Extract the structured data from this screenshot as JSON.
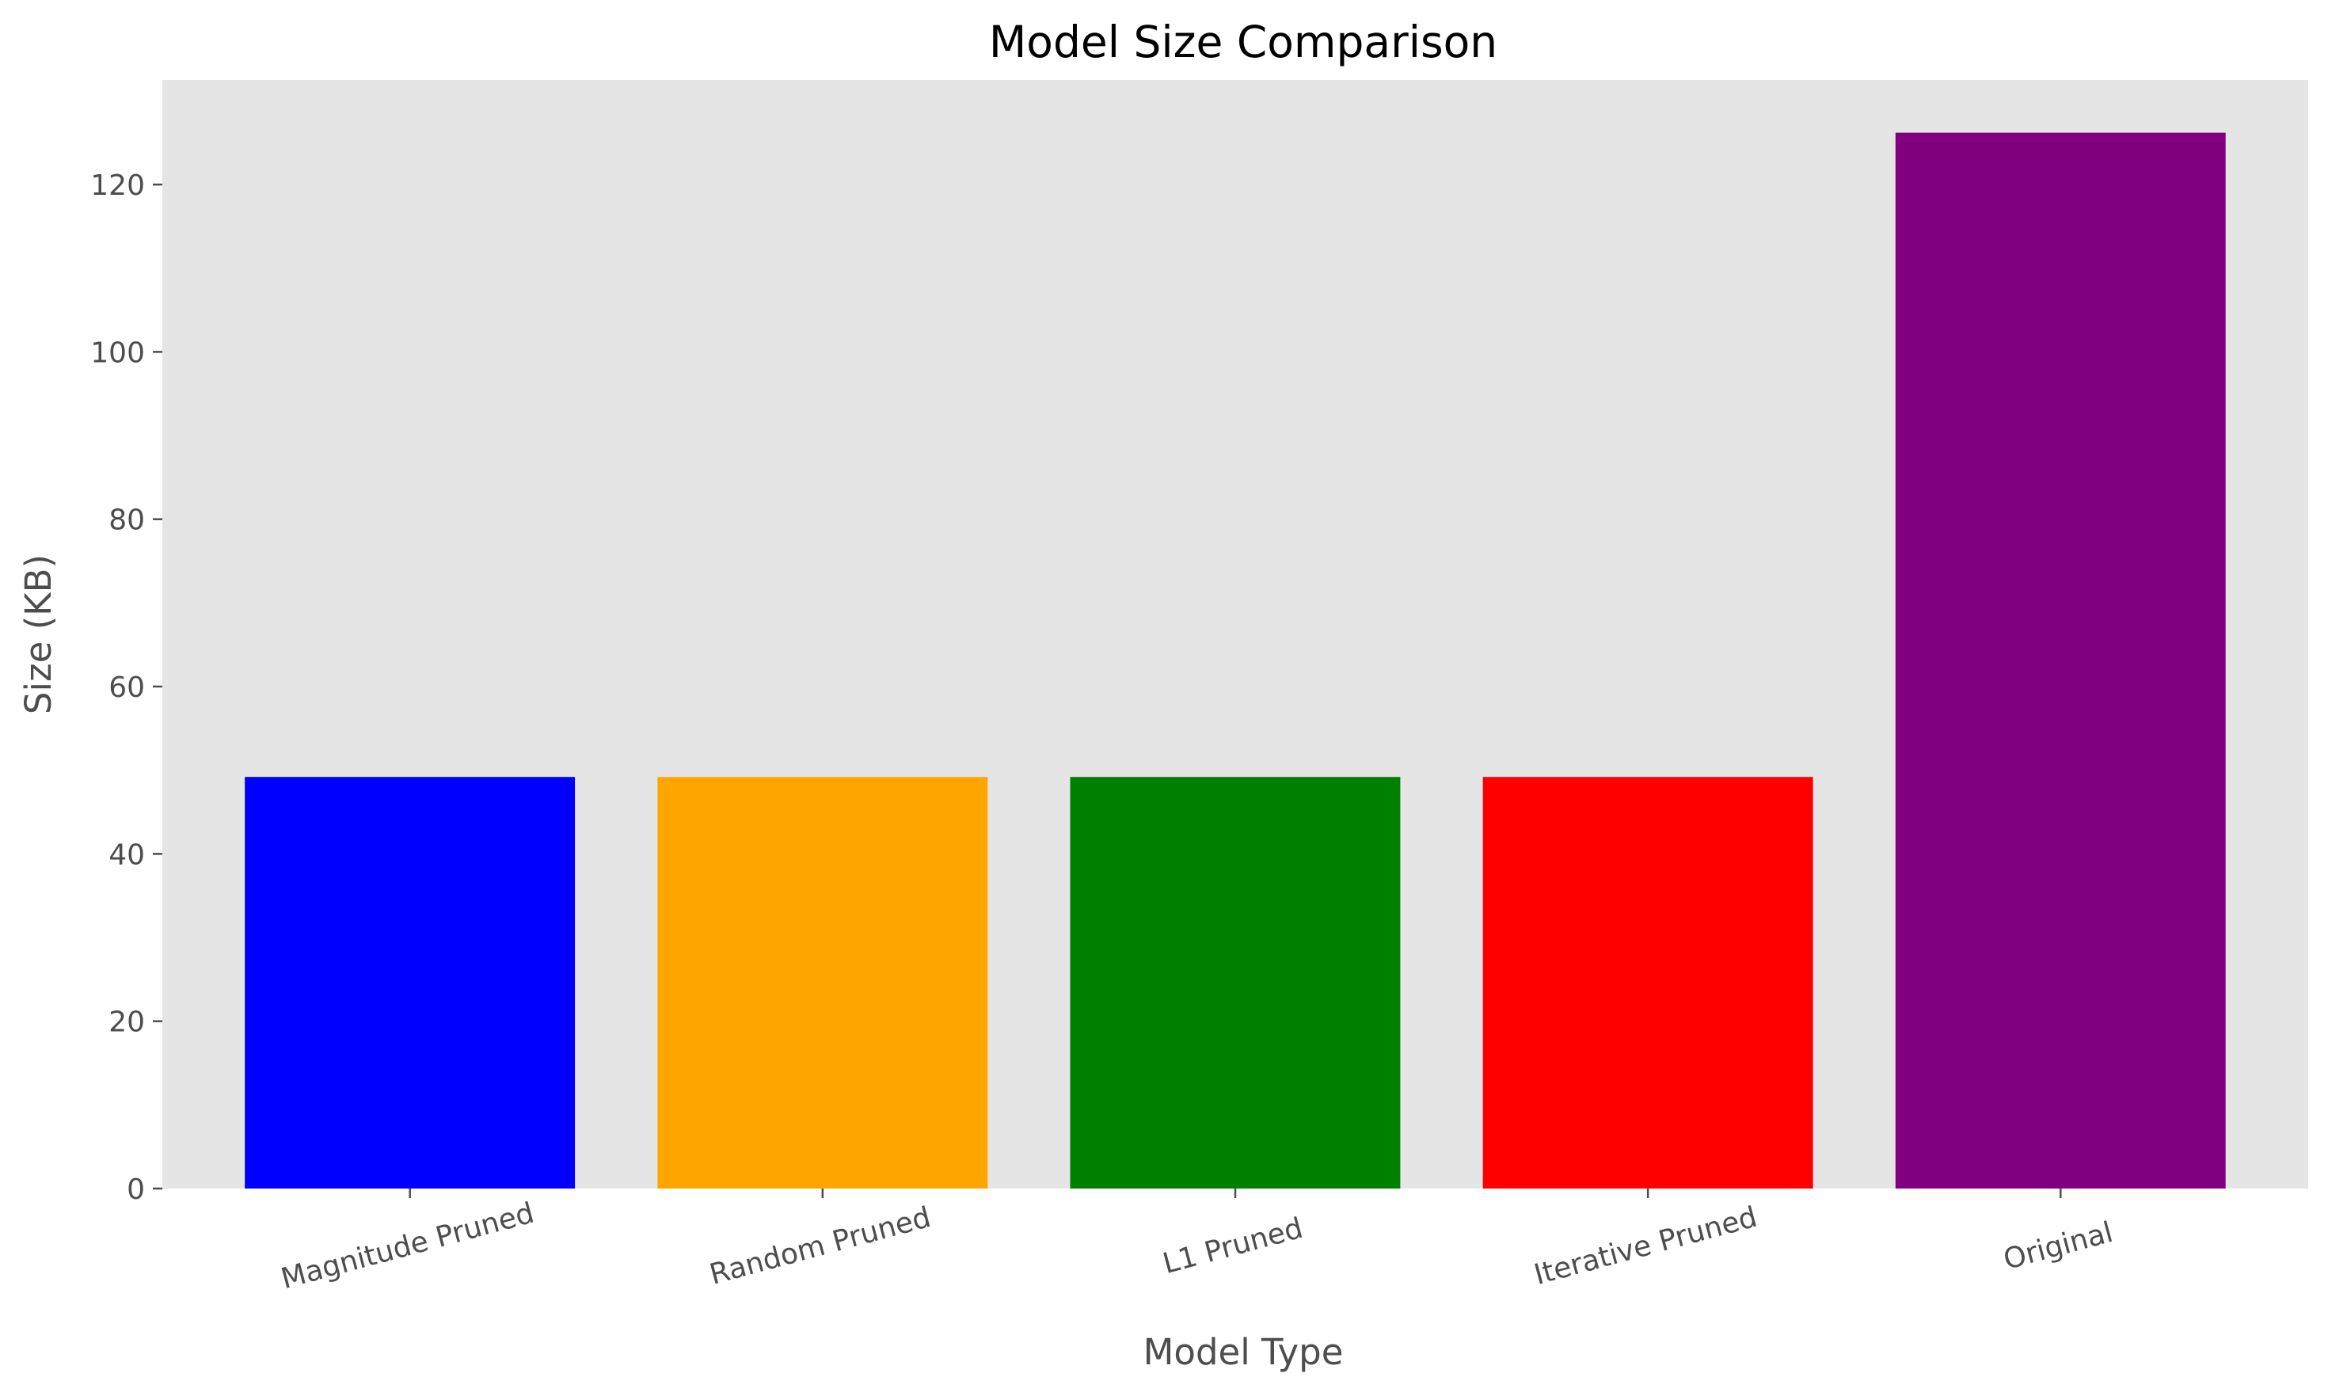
{
  "chart_data": {
    "type": "bar",
    "title": "Model Size Comparison",
    "xlabel": "Model Type",
    "ylabel": "Size (KB)",
    "categories": [
      "Magnitude Pruned",
      "Random Pruned",
      "L1 Pruned",
      "Iterative Pruned",
      "Original"
    ],
    "values": [
      49.2,
      49.2,
      49.2,
      49.2,
      126.2
    ],
    "colors": [
      "#0000ff",
      "#ffa500",
      "#008000",
      "#ff0000",
      "#800080"
    ],
    "ylim": [
      0,
      132.5
    ],
    "yticks": [
      0,
      20,
      40,
      60,
      80,
      100,
      120
    ],
    "grid": false,
    "legend": "none",
    "plot_background": "#e5e5e5"
  }
}
